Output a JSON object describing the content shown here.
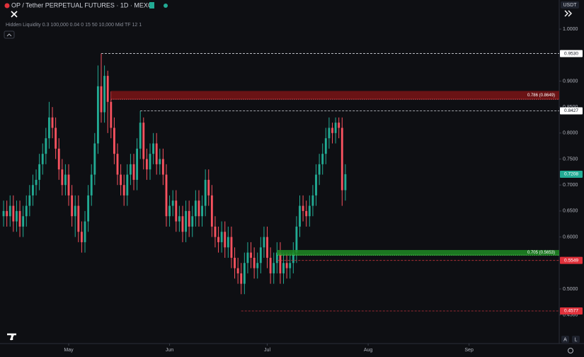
{
  "chart_data": {
    "type": "candlestick",
    "title": "OP / Tether PERPETUAL FUTURES · 1D · MEXC",
    "indicator": "Hidden Liquidity 0.3 100,000 0.04 0 15 50 10,000 Mid TF 12 1",
    "currency": "USDT",
    "up_color": "#22ab94",
    "down_color": "#f7525f",
    "open": [
      0.64,
      0.65,
      0.64,
      0.66,
      0.63,
      0.65,
      0.62,
      0.64,
      0.66,
      0.68,
      0.7,
      0.71,
      0.74,
      0.76,
      0.79,
      0.83,
      0.81,
      0.77,
      0.73,
      0.7,
      0.72,
      0.68,
      0.64,
      0.66,
      0.61,
      0.59,
      0.63,
      0.68,
      0.72,
      0.78,
      0.89,
      0.84,
      0.91,
      0.86,
      0.81,
      0.76,
      0.72,
      0.7,
      0.68,
      0.72,
      0.74,
      0.71,
      0.77,
      0.82,
      0.75,
      0.73,
      0.76,
      0.78,
      0.74,
      0.75,
      0.72,
      0.64,
      0.66,
      0.67,
      0.63,
      0.64,
      0.61,
      0.65,
      0.62,
      0.64,
      0.67,
      0.64,
      0.66,
      0.71,
      0.68,
      0.62,
      0.6,
      0.59,
      0.61,
      0.58,
      0.6,
      0.56,
      0.54,
      0.53,
      0.51,
      0.55,
      0.57,
      0.56,
      0.54,
      0.55,
      0.58,
      0.6,
      0.56,
      0.53,
      0.55,
      0.57,
      0.53,
      0.55,
      0.54,
      0.55,
      0.57,
      0.62,
      0.66,
      0.65,
      0.64,
      0.66,
      0.68,
      0.72,
      0.74,
      0.76,
      0.79,
      0.81,
      0.8,
      0.82,
      0.81,
      0.69
    ],
    "high": [
      0.67,
      0.67,
      0.68,
      0.68,
      0.67,
      0.67,
      0.66,
      0.68,
      0.7,
      0.72,
      0.73,
      0.76,
      0.78,
      0.81,
      0.86,
      0.85,
      0.83,
      0.79,
      0.75,
      0.74,
      0.74,
      0.7,
      0.68,
      0.68,
      0.63,
      0.65,
      0.7,
      0.74,
      0.8,
      0.93,
      0.953,
      0.93,
      0.92,
      0.88,
      0.83,
      0.78,
      0.74,
      0.72,
      0.74,
      0.76,
      0.76,
      0.79,
      0.8427,
      0.83,
      0.77,
      0.78,
      0.8,
      0.8,
      0.77,
      0.77,
      0.74,
      0.68,
      0.69,
      0.69,
      0.66,
      0.66,
      0.67,
      0.67,
      0.66,
      0.69,
      0.69,
      0.68,
      0.73,
      0.73,
      0.7,
      0.64,
      0.62,
      0.63,
      0.63,
      0.62,
      0.62,
      0.58,
      0.56,
      0.55,
      0.57,
      0.59,
      0.59,
      0.58,
      0.57,
      0.6,
      0.62,
      0.62,
      0.58,
      0.57,
      0.59,
      0.59,
      0.57,
      0.57,
      0.57,
      0.59,
      0.64,
      0.68,
      0.68,
      0.67,
      0.68,
      0.7,
      0.74,
      0.76,
      0.78,
      0.81,
      0.83,
      0.82,
      0.83,
      0.83,
      0.83,
      0.74
    ],
    "low": [
      0.62,
      0.62,
      0.62,
      0.61,
      0.61,
      0.6,
      0.6,
      0.62,
      0.64,
      0.66,
      0.68,
      0.69,
      0.72,
      0.74,
      0.77,
      0.79,
      0.75,
      0.71,
      0.68,
      0.68,
      0.66,
      0.62,
      0.6,
      0.59,
      0.57,
      0.57,
      0.61,
      0.66,
      0.7,
      0.76,
      0.82,
      0.82,
      0.8,
      0.79,
      0.74,
      0.7,
      0.68,
      0.66,
      0.66,
      0.7,
      0.69,
      0.69,
      0.75,
      0.73,
      0.71,
      0.71,
      0.74,
      0.72,
      0.72,
      0.7,
      0.62,
      0.62,
      0.64,
      0.61,
      0.61,
      0.59,
      0.59,
      0.6,
      0.6,
      0.62,
      0.62,
      0.62,
      0.64,
      0.66,
      0.6,
      0.58,
      0.57,
      0.57,
      0.56,
      0.56,
      0.54,
      0.52,
      0.51,
      0.49,
      0.49,
      0.53,
      0.54,
      0.52,
      0.52,
      0.53,
      0.56,
      0.54,
      0.51,
      0.51,
      0.53,
      0.51,
      0.51,
      0.52,
      0.52,
      0.53,
      0.55,
      0.6,
      0.63,
      0.62,
      0.62,
      0.64,
      0.66,
      0.7,
      0.72,
      0.74,
      0.77,
      0.78,
      0.78,
      0.79,
      0.66,
      0.67
    ],
    "close": [
      0.65,
      0.64,
      0.66,
      0.63,
      0.65,
      0.62,
      0.64,
      0.66,
      0.68,
      0.7,
      0.71,
      0.74,
      0.76,
      0.79,
      0.83,
      0.81,
      0.77,
      0.73,
      0.7,
      0.72,
      0.68,
      0.64,
      0.66,
      0.61,
      0.59,
      0.63,
      0.68,
      0.72,
      0.78,
      0.89,
      0.84,
      0.91,
      0.86,
      0.81,
      0.76,
      0.72,
      0.7,
      0.68,
      0.72,
      0.74,
      0.71,
      0.77,
      0.82,
      0.75,
      0.73,
      0.76,
      0.78,
      0.74,
      0.75,
      0.72,
      0.64,
      0.66,
      0.67,
      0.63,
      0.64,
      0.61,
      0.65,
      0.62,
      0.64,
      0.67,
      0.64,
      0.66,
      0.71,
      0.68,
      0.62,
      0.6,
      0.59,
      0.61,
      0.58,
      0.6,
      0.56,
      0.54,
      0.53,
      0.51,
      0.55,
      0.57,
      0.56,
      0.54,
      0.55,
      0.58,
      0.6,
      0.56,
      0.53,
      0.55,
      0.57,
      0.53,
      0.55,
      0.54,
      0.55,
      0.57,
      0.62,
      0.66,
      0.65,
      0.64,
      0.66,
      0.68,
      0.72,
      0.74,
      0.76,
      0.79,
      0.81,
      0.8,
      0.82,
      0.81,
      0.69,
      0.7208
    ],
    "xlim": [
      -1.1,
      170.7
    ],
    "xticks": [
      {
        "value": 20,
        "label": "May"
      },
      {
        "value": 51,
        "label": "Jun"
      },
      {
        "value": 81,
        "label": "Jul"
      },
      {
        "value": 112,
        "label": "Aug"
      },
      {
        "value": 143,
        "label": "Sep"
      }
    ],
    "ylim": [
      0.395,
      1.056
    ],
    "yticks": [
      {
        "value": 1.0,
        "label": "1.0000"
      },
      {
        "value": 0.9,
        "label": "0.9000"
      },
      {
        "value": 0.85,
        "label": "0.8500"
      },
      {
        "value": 0.8,
        "label": "0.8000"
      },
      {
        "value": 0.75,
        "label": "0.7500"
      },
      {
        "value": 0.7,
        "label": "0.7000"
      },
      {
        "value": 0.65,
        "label": "0.6500"
      },
      {
        "value": 0.6,
        "label": "0.6000"
      },
      {
        "value": 0.5,
        "label": "0.5000"
      },
      {
        "value": 0.45,
        "label": "0.4500"
      }
    ],
    "zones": [
      {
        "label": "0.786 (0.8649)",
        "top": 0.881,
        "bottom": 0.865,
        "start": 33,
        "color": "#7a1416",
        "edge": "#e0474c"
      },
      {
        "label": "0.705 (0.5653)",
        "top": 0.575,
        "bottom": 0.565,
        "start": 84,
        "color": "#1e8a25",
        "edge": "#4cd14f"
      }
    ],
    "levels": [
      {
        "value": 0.953,
        "label": "0.9530",
        "start": 30,
        "color": "#d1d4dc",
        "tag_color": "#ffffff",
        "text_color": "#131722"
      },
      {
        "value": 0.8427,
        "label": "0.8427",
        "start": 42,
        "color": "#d1d4dc",
        "tag_color": "#ffffff",
        "text_color": "#131722"
      },
      {
        "value": 0.5549,
        "label": "0.5549",
        "start": 84,
        "color": "#c0353b",
        "tag_color": "#e0313b",
        "text_color": "#ffffff"
      },
      {
        "value": 0.4577,
        "label": "0.4577",
        "start": 73,
        "color": "#c0353b",
        "tag_color": "#e0313b",
        "text_color": "#ffffff"
      }
    ],
    "price_tag": {
      "value": 0.7208,
      "label": "0.7208",
      "color": "#22ab94"
    }
  }
}
